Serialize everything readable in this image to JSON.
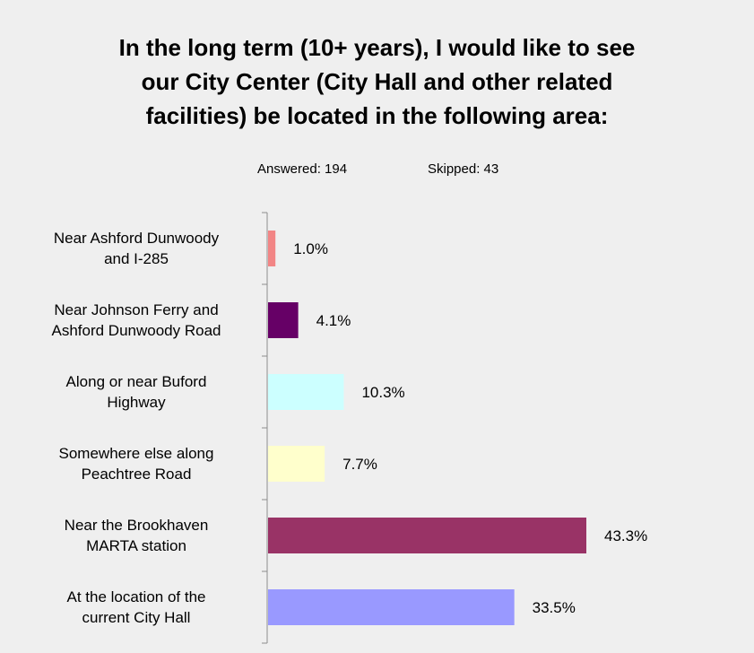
{
  "title_lines": [
    "In the long term (10+ years), I would like to see",
    "our City Center (City Hall and other related",
    "facilities) be located in the following area:"
  ],
  "stats": {
    "answered": "Answered: 194",
    "skipped": "Skipped: 43"
  },
  "chart_data": {
    "type": "bar",
    "orientation": "horizontal",
    "title": "In the long term (10+ years), I would like to see our City Center (City Hall and other related facilities) be located in the following area:",
    "categories": [
      [
        "Near Ashford Dunwoody",
        "and I-285"
      ],
      [
        "Near Johnson Ferry and",
        "Ashford Dunwoody Road"
      ],
      [
        "Along or near Buford",
        "Highway"
      ],
      [
        "Somewhere else along",
        "Peachtree Road"
      ],
      [
        "Near the Brookhaven",
        "MARTA station"
      ],
      [
        "At the location of the",
        "current City Hall"
      ]
    ],
    "values": [
      1.0,
      4.1,
      10.3,
      7.7,
      43.3,
      33.5
    ],
    "value_labels": [
      "1.0%",
      "4.1%",
      "10.3%",
      "7.7%",
      "43.3%",
      "33.5%"
    ],
    "colors": [
      "#f28585",
      "#660066",
      "#ccffff",
      "#ffffcc",
      "#993366",
      "#9999ff"
    ],
    "xlim": [
      0,
      50
    ],
    "grid": false,
    "legend": "none"
  }
}
